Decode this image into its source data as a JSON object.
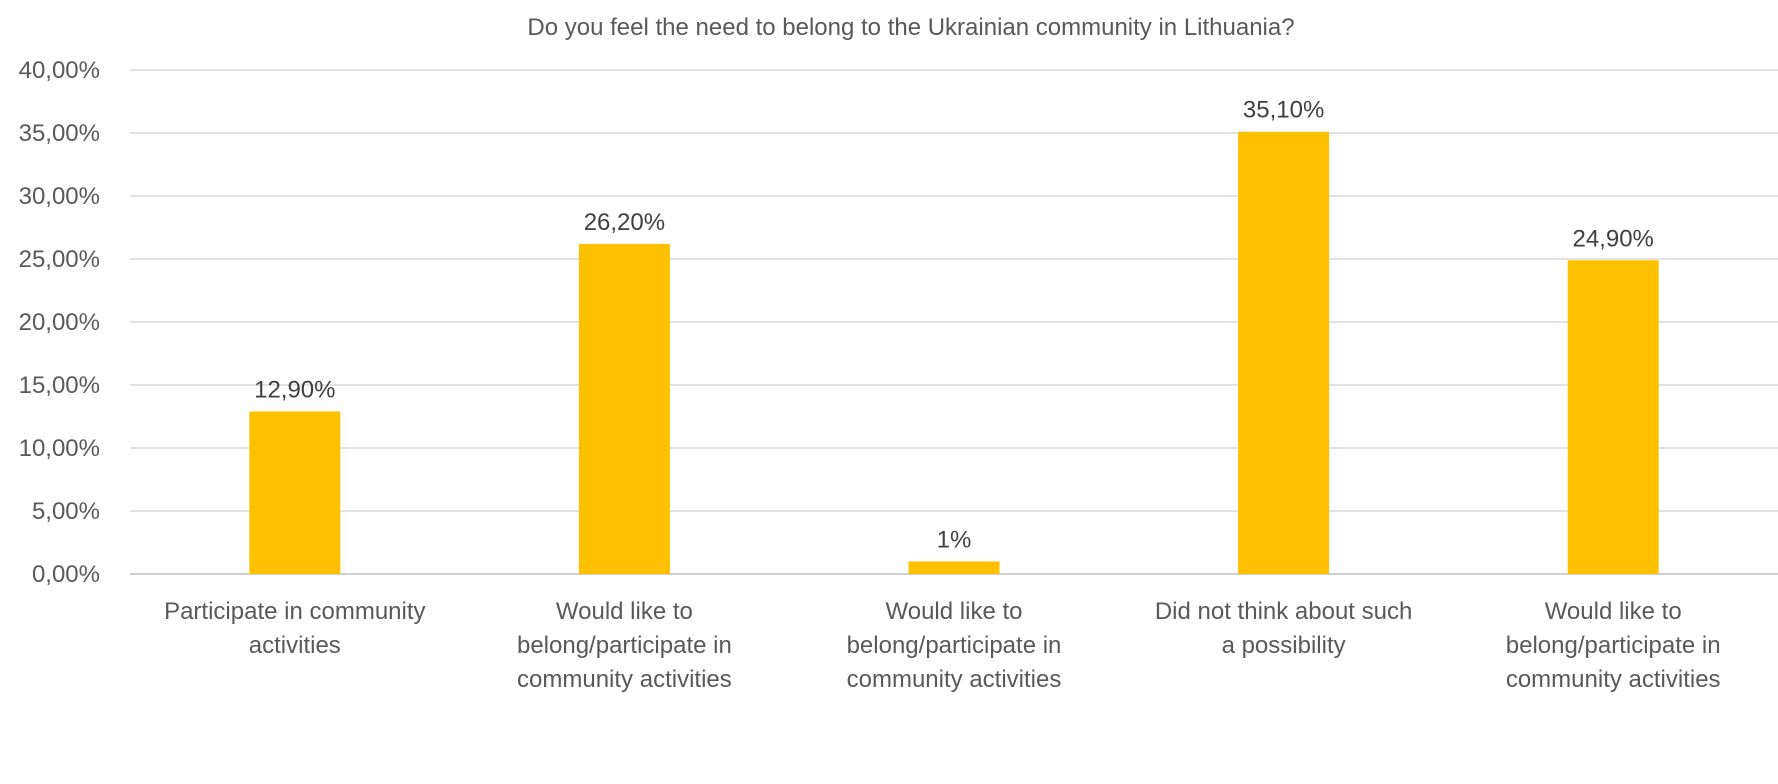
{
  "chart_data": {
    "type": "bar",
    "title": "Do you feel the need to belong to the Ukrainian community in Lithuania?",
    "xlabel": "",
    "ylabel": "",
    "ylim": [
      0,
      40
    ],
    "y_tick_labels": [
      "0,00%",
      "5,00%",
      "10,00%",
      "15,00%",
      "20,00%",
      "25,00%",
      "30,00%",
      "35,00%",
      "40,00%"
    ],
    "grid": true,
    "legend": "none",
    "bar_color": "#FFC000",
    "categories": [
      [
        "Participate in community",
        "activities"
      ],
      [
        "Would like to",
        "belong/participate in",
        "community activities"
      ],
      [
        "Would like to",
        "belong/participate in",
        "community activities"
      ],
      [
        "Did not think about such",
        "a possibility"
      ],
      [
        "Would like to",
        "belong/participate in",
        "community activities"
      ]
    ],
    "values": [
      12.9,
      26.2,
      1,
      35.1,
      24.9
    ],
    "data_labels": [
      "12,90%",
      "26,20%",
      "1%",
      "35,10%",
      "24,90%"
    ]
  }
}
